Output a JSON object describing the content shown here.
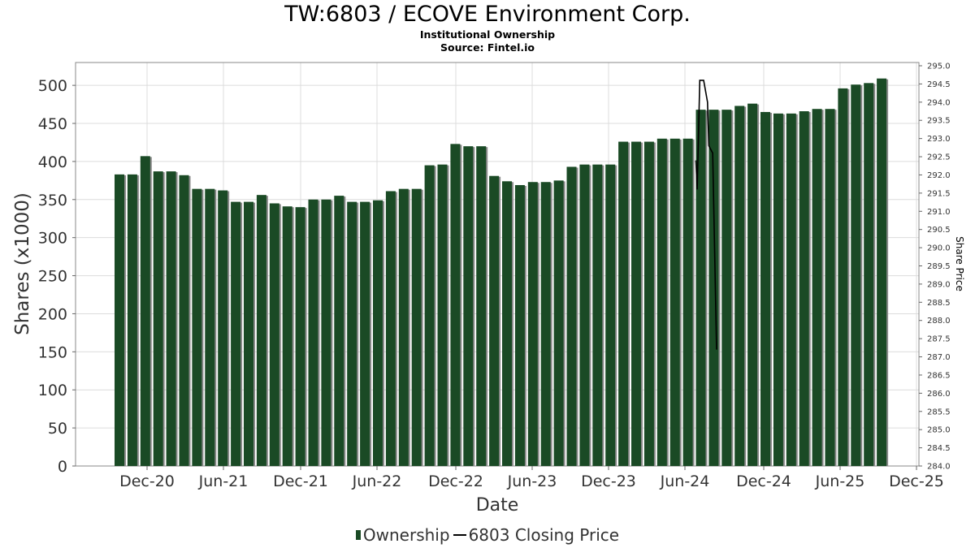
{
  "chart_data": {
    "type": "bar",
    "title": "TW:6803 / ECOVE Environment Corp.",
    "subtitles": [
      "Institutional Ownership",
      "Source: Fintel.io"
    ],
    "xlabel": "Date",
    "ylabel": "Shares (x1000)",
    "y2label": "Share Price",
    "ylim": [
      0,
      530
    ],
    "y2lim": [
      284.0,
      295.0
    ],
    "yticks": [
      0,
      50,
      100,
      150,
      200,
      250,
      300,
      350,
      400,
      450,
      500
    ],
    "y2ticks": [
      "284.0",
      "284.5",
      "285.0",
      "285.5",
      "286.0",
      "286.5",
      "287.0",
      "287.5",
      "288.0",
      "288.5",
      "289.0",
      "289.5",
      "290.0",
      "290.5",
      "291.0",
      "291.5",
      "292.0",
      "292.5",
      "293.0",
      "293.5",
      "294.0",
      "294.5",
      "295.0"
    ],
    "xticks": [
      "Dec-20",
      "Jun-21",
      "Dec-21",
      "Jun-22",
      "Dec-22",
      "Jun-23",
      "Dec-23",
      "Jun-24",
      "Dec-24",
      "Jun-25",
      "Dec-25"
    ],
    "grid": true,
    "legend_position": "bottom",
    "series": [
      {
        "name": "Ownership",
        "color": "#1a4a25",
        "values": [
          383,
          383,
          407,
          387,
          387,
          382,
          364,
          364,
          362,
          347,
          347,
          356,
          345,
          341,
          340,
          350,
          350,
          355,
          347,
          347,
          349,
          361,
          364,
          364,
          395,
          396,
          423,
          420,
          420,
          381,
          374,
          369,
          373,
          373,
          375,
          393,
          396,
          396,
          396,
          426,
          426,
          426,
          430,
          430,
          430,
          468,
          468,
          468,
          473,
          476,
          465,
          463,
          463,
          466,
          469,
          469,
          496,
          501,
          503,
          509
        ]
      },
      {
        "name": "6803 Closing Price",
        "color": "#000000",
        "points": [
          {
            "x": 45.0,
            "y": 292.4
          },
          {
            "x": 45.1,
            "y": 291.6
          },
          {
            "x": 45.3,
            "y": 294.6
          },
          {
            "x": 45.6,
            "y": 294.6
          },
          {
            "x": 45.9,
            "y": 294.0
          },
          {
            "x": 46.0,
            "y": 292.8
          },
          {
            "x": 46.3,
            "y": 292.6
          },
          {
            "x": 46.6,
            "y": 287.2
          }
        ]
      }
    ]
  },
  "legend": {
    "items": [
      {
        "label": "Ownership",
        "color": "#1a4a25"
      },
      {
        "label": "6803 Closing Price",
        "color": "#000000"
      }
    ]
  }
}
